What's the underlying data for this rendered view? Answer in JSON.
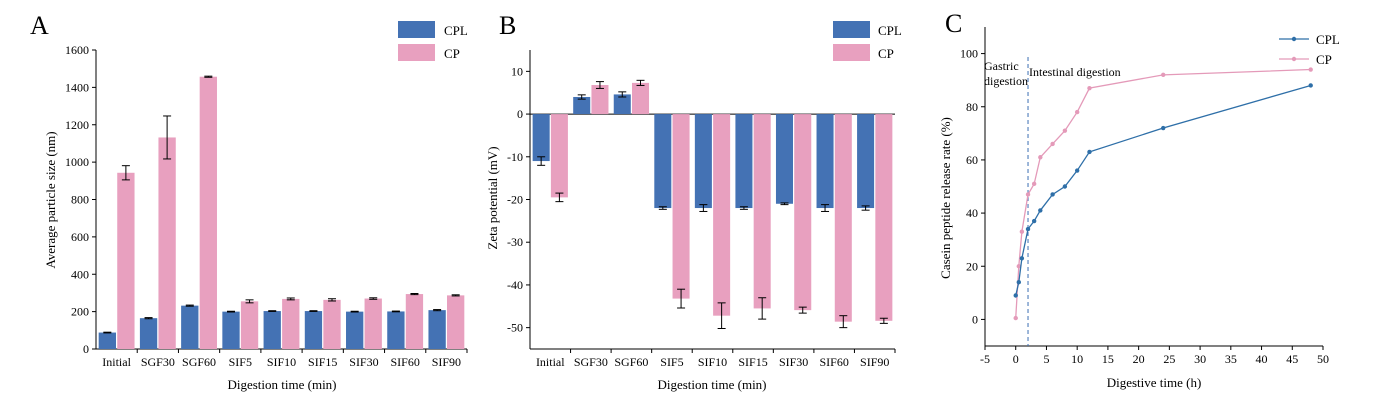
{
  "colors": {
    "cpl": "#4472b4",
    "cp": "#e8a0bf",
    "cpl_line": "#2e6fa8",
    "cp_line": "#e49ab9",
    "axis": "#000000",
    "divider": "#3c6fb4"
  },
  "chart_data": [
    {
      "id": "A",
      "type": "bar",
      "panel_label": "A",
      "categories": [
        "Initial",
        "SGF30",
        "SGF60",
        "SIF5",
        "SIF10",
        "SIF15",
        "SIF30",
        "SIF60",
        "SIF90"
      ],
      "series": [
        {
          "name": "CPL",
          "values": [
            88,
            165,
            232,
            200,
            203,
            203,
            200,
            201,
            208
          ],
          "errors": [
            2,
            3,
            3,
            2,
            2,
            2,
            2,
            2,
            3
          ]
        },
        {
          "name": "CP",
          "values": [
            943,
            1132,
            1457,
            255,
            268,
            263,
            270,
            294,
            287
          ],
          "errors": [
            38,
            115,
            3,
            8,
            5,
            6,
            4,
            3,
            3
          ]
        }
      ],
      "xlabel": "Digestion time (min)",
      "ylabel": "Average particle size (nm)",
      "ylim": [
        0,
        1600
      ],
      "yticks": [
        0,
        200,
        400,
        600,
        800,
        1000,
        1200,
        1400,
        1600
      ],
      "legend": [
        "CPL",
        "CP"
      ]
    },
    {
      "id": "B",
      "type": "bar",
      "panel_label": "B",
      "categories": [
        "Initial",
        "SGF30",
        "SGF60",
        "SIF5",
        "SIF10",
        "SIF15",
        "SIF30",
        "SIF60",
        "SIF90"
      ],
      "series": [
        {
          "name": "CPL",
          "values": [
            -11,
            4.0,
            4.6,
            -22,
            -22,
            -22,
            -21,
            -22,
            -22
          ],
          "errors": [
            1.0,
            0.5,
            0.6,
            0.3,
            0.8,
            0.3,
            0.2,
            0.8,
            0.5
          ]
        },
        {
          "name": "CP",
          "values": [
            -19.5,
            6.8,
            7.3,
            -43.2,
            -47.2,
            -45.5,
            -45.9,
            -48.6,
            -48.4
          ],
          "errors": [
            1.0,
            0.8,
            0.6,
            2.2,
            3.0,
            2.5,
            0.7,
            1.4,
            0.6
          ]
        }
      ],
      "xlabel": "Digestion time (min)",
      "ylabel": "Zeta potential (mV)",
      "ylim": [
        -55,
        15
      ],
      "yticks": [
        -50,
        -40,
        -30,
        -20,
        -10,
        0,
        10
      ],
      "legend": [
        "CPL",
        "CP"
      ]
    },
    {
      "id": "C",
      "type": "line",
      "panel_label": "C",
      "series": [
        {
          "name": "CPL",
          "x": [
            0,
            0.5,
            1,
            2,
            3,
            4,
            6,
            8,
            10,
            12,
            24,
            48
          ],
          "y": [
            9,
            14,
            23,
            34,
            37,
            41,
            47,
            50,
            56,
            63,
            72,
            88
          ]
        },
        {
          "name": "CP",
          "x": [
            0,
            0.5,
            1,
            2,
            3,
            4,
            6,
            8,
            10,
            12,
            24,
            48
          ],
          "y": [
            0.5,
            20,
            33,
            47,
            51,
            61,
            66,
            71,
            78,
            87,
            92,
            94
          ]
        }
      ],
      "xlabel": "Digestive time  (h)",
      "ylabel": "Casein peptide release rate  (%)",
      "xlim": [
        -5,
        50
      ],
      "ylim": [
        -10,
        110
      ],
      "xticks": [
        -5,
        0,
        5,
        10,
        15,
        20,
        25,
        30,
        35,
        40,
        45,
        50
      ],
      "yticks": [
        0,
        20,
        40,
        60,
        80,
        100
      ],
      "divider_x": 2,
      "annotations": {
        "gastric_1": "Gastric",
        "gastric_2": "digestion",
        "intestinal": "Intestinal digestion"
      },
      "legend": [
        "CPL",
        "CP"
      ]
    }
  ]
}
